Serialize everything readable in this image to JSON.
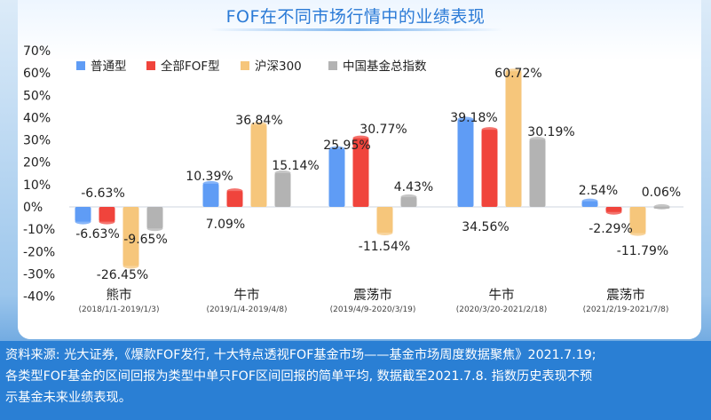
{
  "chart_data": {
    "type": "bar",
    "title": "FOF在不同市场行情中的业绩表现",
    "ylim": [
      -40,
      70
    ],
    "yticks": [
      "70%",
      "60%",
      "50%",
      "40%",
      "30%",
      "20%",
      "10%",
      "0%",
      "-10%",
      "-20%",
      "-30%",
      "-40%"
    ],
    "categories": [
      {
        "name": "熊市",
        "period": "(2018/1/1-2019/1/3)"
      },
      {
        "name": "牛市",
        "period": "(2019/1/4-2019/4/8)"
      },
      {
        "name": "震荡市",
        "period": "(2019/4/9-2020/3/19)"
      },
      {
        "name": "牛市",
        "period": "(2020/3/20-2021/2/18)"
      },
      {
        "name": "震荡市",
        "period": "(2021/2/19-2021/7/8)"
      }
    ],
    "series": [
      {
        "name": "普通型",
        "color": "#5f9cf5",
        "values": [
          -6.63,
          10.39,
          25.95,
          39.18,
          2.54
        ],
        "labels": [
          "-6.63%",
          "10.39%",
          "25.95%",
          "39.18%",
          "2.54%"
        ]
      },
      {
        "name": "全部FOF型",
        "color": "#f0443c",
        "values": [
          -6.63,
          7.09,
          30.77,
          34.56,
          -2.29
        ],
        "labels": [
          "-6.63%",
          "7.09%",
          "30.77%",
          "34.56%",
          "-2.29%"
        ]
      },
      {
        "name": "沪深300",
        "color": "#f6c67b",
        "values": [
          -26.45,
          36.84,
          -11.54,
          60.72,
          -11.79
        ],
        "labels": [
          "-26.45%",
          "36.84%",
          "-11.54%",
          "60.72%",
          "-11.79%"
        ]
      },
      {
        "name": "中国基金总指数",
        "color": "#b3b3b3",
        "values": [
          -9.65,
          15.14,
          4.43,
          30.19,
          0.06
        ],
        "labels": [
          "-9.65%",
          "15.14%",
          "4.43%",
          "30.19%",
          "0.06%"
        ]
      }
    ],
    "legend_position": "top-left",
    "grid": false
  },
  "footer": {
    "line1": "资料来源: 光大证券,《爆款FOF发行, 十大特点透视FOF基金市场——基金市场周度数据聚焦》2021.7.19;",
    "line2": "各类型FOF基金的区间回报为类型中单只FOF区间回报的简单平均, 数据截至2021.7.8. 指数历史表现不预",
    "line3": "示基金未来业绩表现。"
  }
}
